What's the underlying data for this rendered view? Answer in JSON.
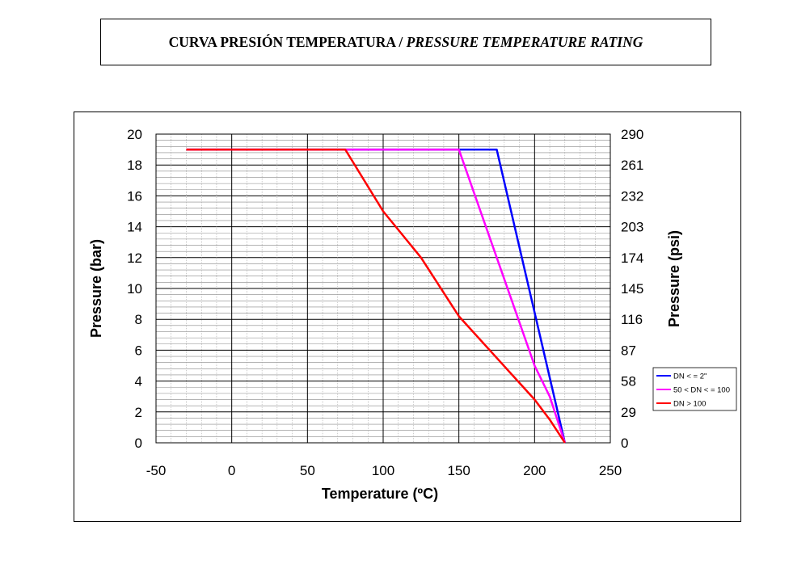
{
  "header": {
    "title_es": "CURVA PRESIÓN TEMPERATURA / ",
    "title_en": "PRESSURE TEMPERATURE RATING"
  },
  "chart_data": {
    "type": "line",
    "xlabel": "Temperature (ºC)",
    "ylabel": "Pressure (bar)",
    "y2label": "Pressure (psi)",
    "xlim": [
      -50,
      250
    ],
    "ylim": [
      0,
      20
    ],
    "x_ticks": [
      "-50",
      "0",
      "50",
      "100",
      "150",
      "200",
      "250"
    ],
    "y_ticks": [
      "0",
      "2",
      "4",
      "6",
      "8",
      "10",
      "12",
      "14",
      "16",
      "18",
      "20"
    ],
    "y2_ticks": [
      {
        "value": 0,
        "label": "0"
      },
      {
        "value": 2,
        "label": "29"
      },
      {
        "value": 4,
        "label": "58"
      },
      {
        "value": 6,
        "label": "87"
      },
      {
        "value": 8,
        "label": "116"
      },
      {
        "value": 10,
        "label": "145"
      },
      {
        "value": 12,
        "label": "174"
      },
      {
        "value": 14,
        "label": "203"
      },
      {
        "value": 16,
        "label": "232"
      },
      {
        "value": 18,
        "label": "261"
      },
      {
        "value": 20,
        "label": "290"
      }
    ],
    "grid": true,
    "legend_position": "right",
    "series": [
      {
        "name": "DN < = 2\"",
        "color": "#0000ff",
        "points": [
          [
            -30,
            19
          ],
          [
            175,
            19
          ],
          [
            220,
            0
          ]
        ]
      },
      {
        "name": "50 < DN < = 100",
        "color": "#ff00ff",
        "points": [
          [
            -30,
            19
          ],
          [
            150,
            19
          ],
          [
            200,
            5
          ],
          [
            210,
            3
          ],
          [
            220,
            0
          ]
        ]
      },
      {
        "name": "DN > 100",
        "color": "#ff0000",
        "points": [
          [
            -30,
            19
          ],
          [
            75,
            19
          ],
          [
            100,
            15
          ],
          [
            125,
            12
          ],
          [
            150,
            8.2
          ],
          [
            175,
            5.5
          ],
          [
            200,
            2.8
          ],
          [
            210,
            1.5
          ],
          [
            220,
            0
          ]
        ]
      }
    ]
  }
}
